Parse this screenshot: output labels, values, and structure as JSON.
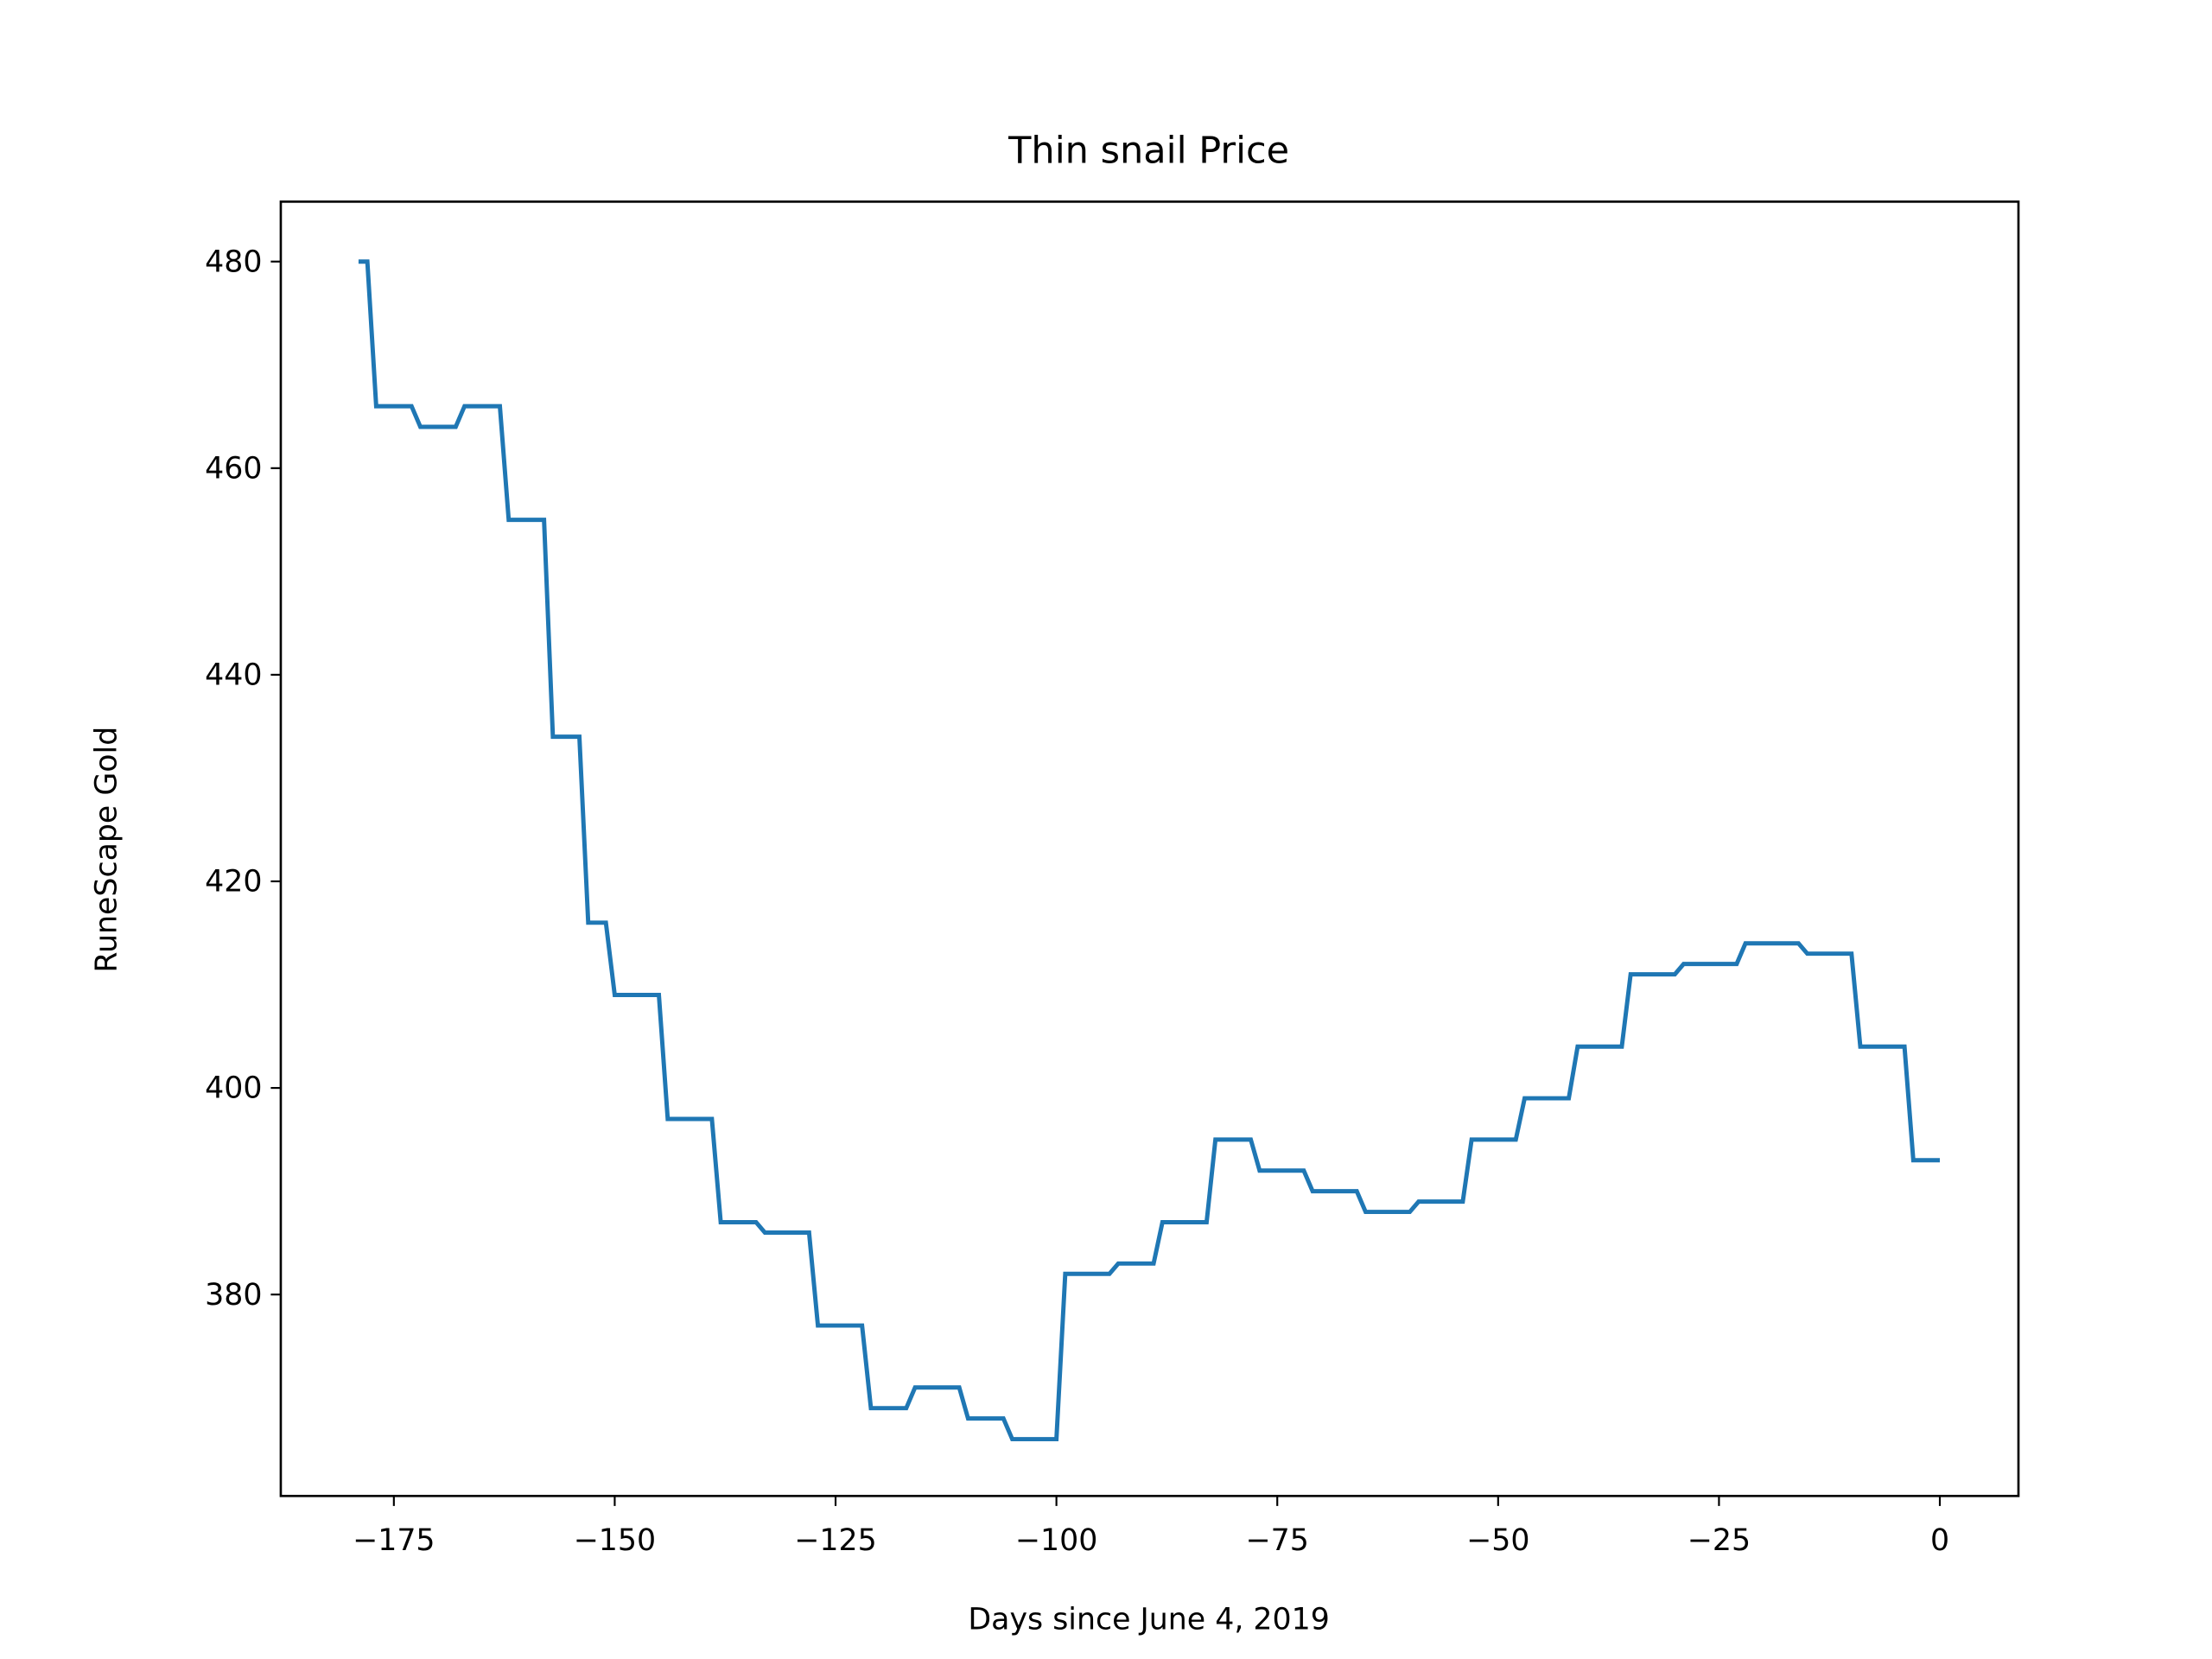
{
  "chart_data": {
    "type": "line",
    "title": "Thin snail Price",
    "x_label": "Days since June 4, 2019",
    "y_label": "RuneScape Gold",
    "xlim": [
      -187.8,
      8.9
    ],
    "ylim": [
      360.5,
      485.8
    ],
    "xticks": [
      {
        "value": -175,
        "label": "−175"
      },
      {
        "value": -150,
        "label": "−150"
      },
      {
        "value": -125,
        "label": "−125"
      },
      {
        "value": -100,
        "label": "−100"
      },
      {
        "value": -75,
        "label": "−75"
      },
      {
        "value": -50,
        "label": "−50"
      },
      {
        "value": -25,
        "label": "−25"
      },
      0
    ],
    "yticks": [
      380,
      400,
      420,
      440,
      460,
      480
    ],
    "grid": false,
    "series": [
      {
        "name": "Thin snail",
        "color": "#1f77b4",
        "x": [
          -179,
          -178,
          -177,
          -173,
          -172,
          -168,
          -167,
          -163,
          -162,
          -158,
          -157,
          -154,
          -153,
          -151,
          -150,
          -145,
          -144,
          -139,
          -138,
          -134,
          -133,
          -128,
          -127,
          -122,
          -121,
          -117,
          -116,
          -111,
          -110,
          -106,
          -105,
          -100,
          -99,
          -94,
          -93,
          -89,
          -88,
          -83,
          -82,
          -78,
          -77,
          -72,
          -71,
          -66,
          -65,
          -60,
          -59,
          -54,
          -53,
          -48,
          -47,
          -42,
          -41,
          -36,
          -35,
          -30,
          -29,
          -23,
          -22,
          -16,
          -15,
          -10,
          -9,
          -4,
          -3,
          0
        ],
        "values": [
          480,
          480,
          466,
          466,
          464,
          464,
          466,
          466,
          455,
          455,
          434,
          434,
          416,
          416,
          409,
          409,
          397,
          397,
          387,
          387,
          386,
          386,
          377,
          377,
          369,
          369,
          371,
          371,
          368,
          368,
          366,
          366,
          382,
          382,
          383,
          383,
          387,
          387,
          395,
          395,
          392,
          392,
          390,
          390,
          388,
          388,
          389,
          389,
          395,
          395,
          399,
          399,
          404,
          404,
          411,
          411,
          412,
          412,
          414,
          414,
          413,
          413,
          404,
          404,
          393,
          393
        ]
      }
    ]
  }
}
